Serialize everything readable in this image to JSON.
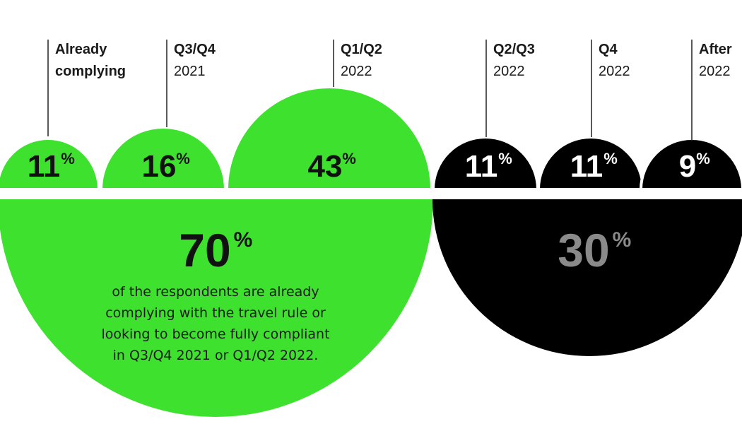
{
  "colors": {
    "complying": "#3ee22e",
    "not_complying": "#000000",
    "later_total_text": "#8a8a8a"
  },
  "chart_data": {
    "type": "semicircle-comparison",
    "categories": [
      {
        "title": "Already",
        "subtitle": "complying",
        "value": 11,
        "group": "complying"
      },
      {
        "title": "Q3/Q4",
        "subtitle": "2021",
        "value": 16,
        "group": "complying"
      },
      {
        "title": "Q1/Q2",
        "subtitle": "2022",
        "value": 43,
        "group": "complying"
      },
      {
        "title": "Q2/Q3",
        "subtitle": "2022",
        "value": 11,
        "group": "later"
      },
      {
        "title": "Q4",
        "subtitle": "2022",
        "value": 11,
        "group": "later"
      },
      {
        "title": "After",
        "subtitle": "2022",
        "value": 9,
        "group": "later"
      }
    ],
    "totals": [
      {
        "group": "complying",
        "value": 70
      },
      {
        "group": "later",
        "value": 30
      }
    ],
    "unit": "%"
  },
  "summary": {
    "lines": [
      "of the respondents are already",
      "complying with the travel rule or",
      "looking to become fully compliant",
      "in Q3/Q4 2021 or Q1/Q2 2022."
    ]
  }
}
